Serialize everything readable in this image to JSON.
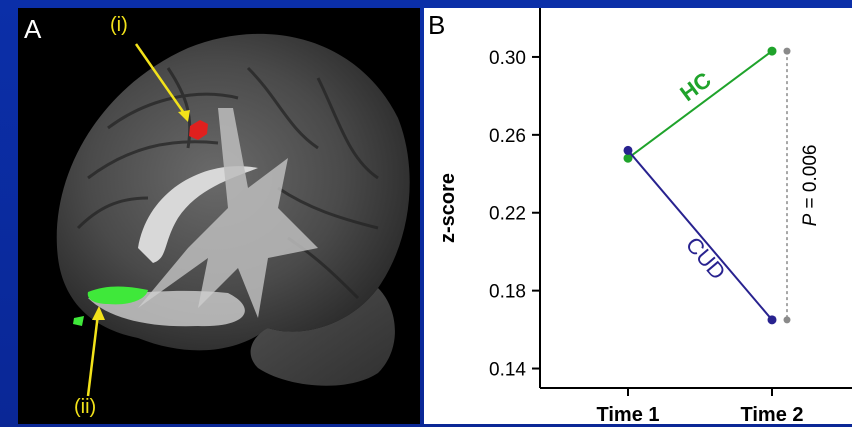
{
  "colors": {
    "background": "#0a2a9a",
    "hc": "#1fa32b",
    "cud": "#28228f",
    "roi_i": "#e0201e",
    "roi_ii": "#3fe83a",
    "annotation": "#f2e21a",
    "pline": "#8a8a8a"
  },
  "panel_a": {
    "letter": "A",
    "roi_i_label": "(i)",
    "roi_ii_label": "(ii)"
  },
  "panel_b": {
    "letter": "B",
    "p_prefix": "P",
    "p_value_text": " = 0.006"
  },
  "chart_data": {
    "type": "line",
    "categories": [
      "Time 1",
      "Time 2"
    ],
    "ylabel": "z-score",
    "xlabel": "",
    "ylim": [
      0.13,
      0.32
    ],
    "yticks": [
      "0.14",
      "0.18",
      "0.22",
      "0.26",
      "0.30"
    ],
    "ytick_values": [
      0.14,
      0.18,
      0.22,
      0.26,
      0.3
    ],
    "series": [
      {
        "name": "HC",
        "values": [
          0.248,
          0.303
        ]
      },
      {
        "name": "CUD",
        "values": [
          0.252,
          0.165
        ]
      }
    ],
    "annotation": "P = 0.006",
    "legend": "inline labels"
  }
}
